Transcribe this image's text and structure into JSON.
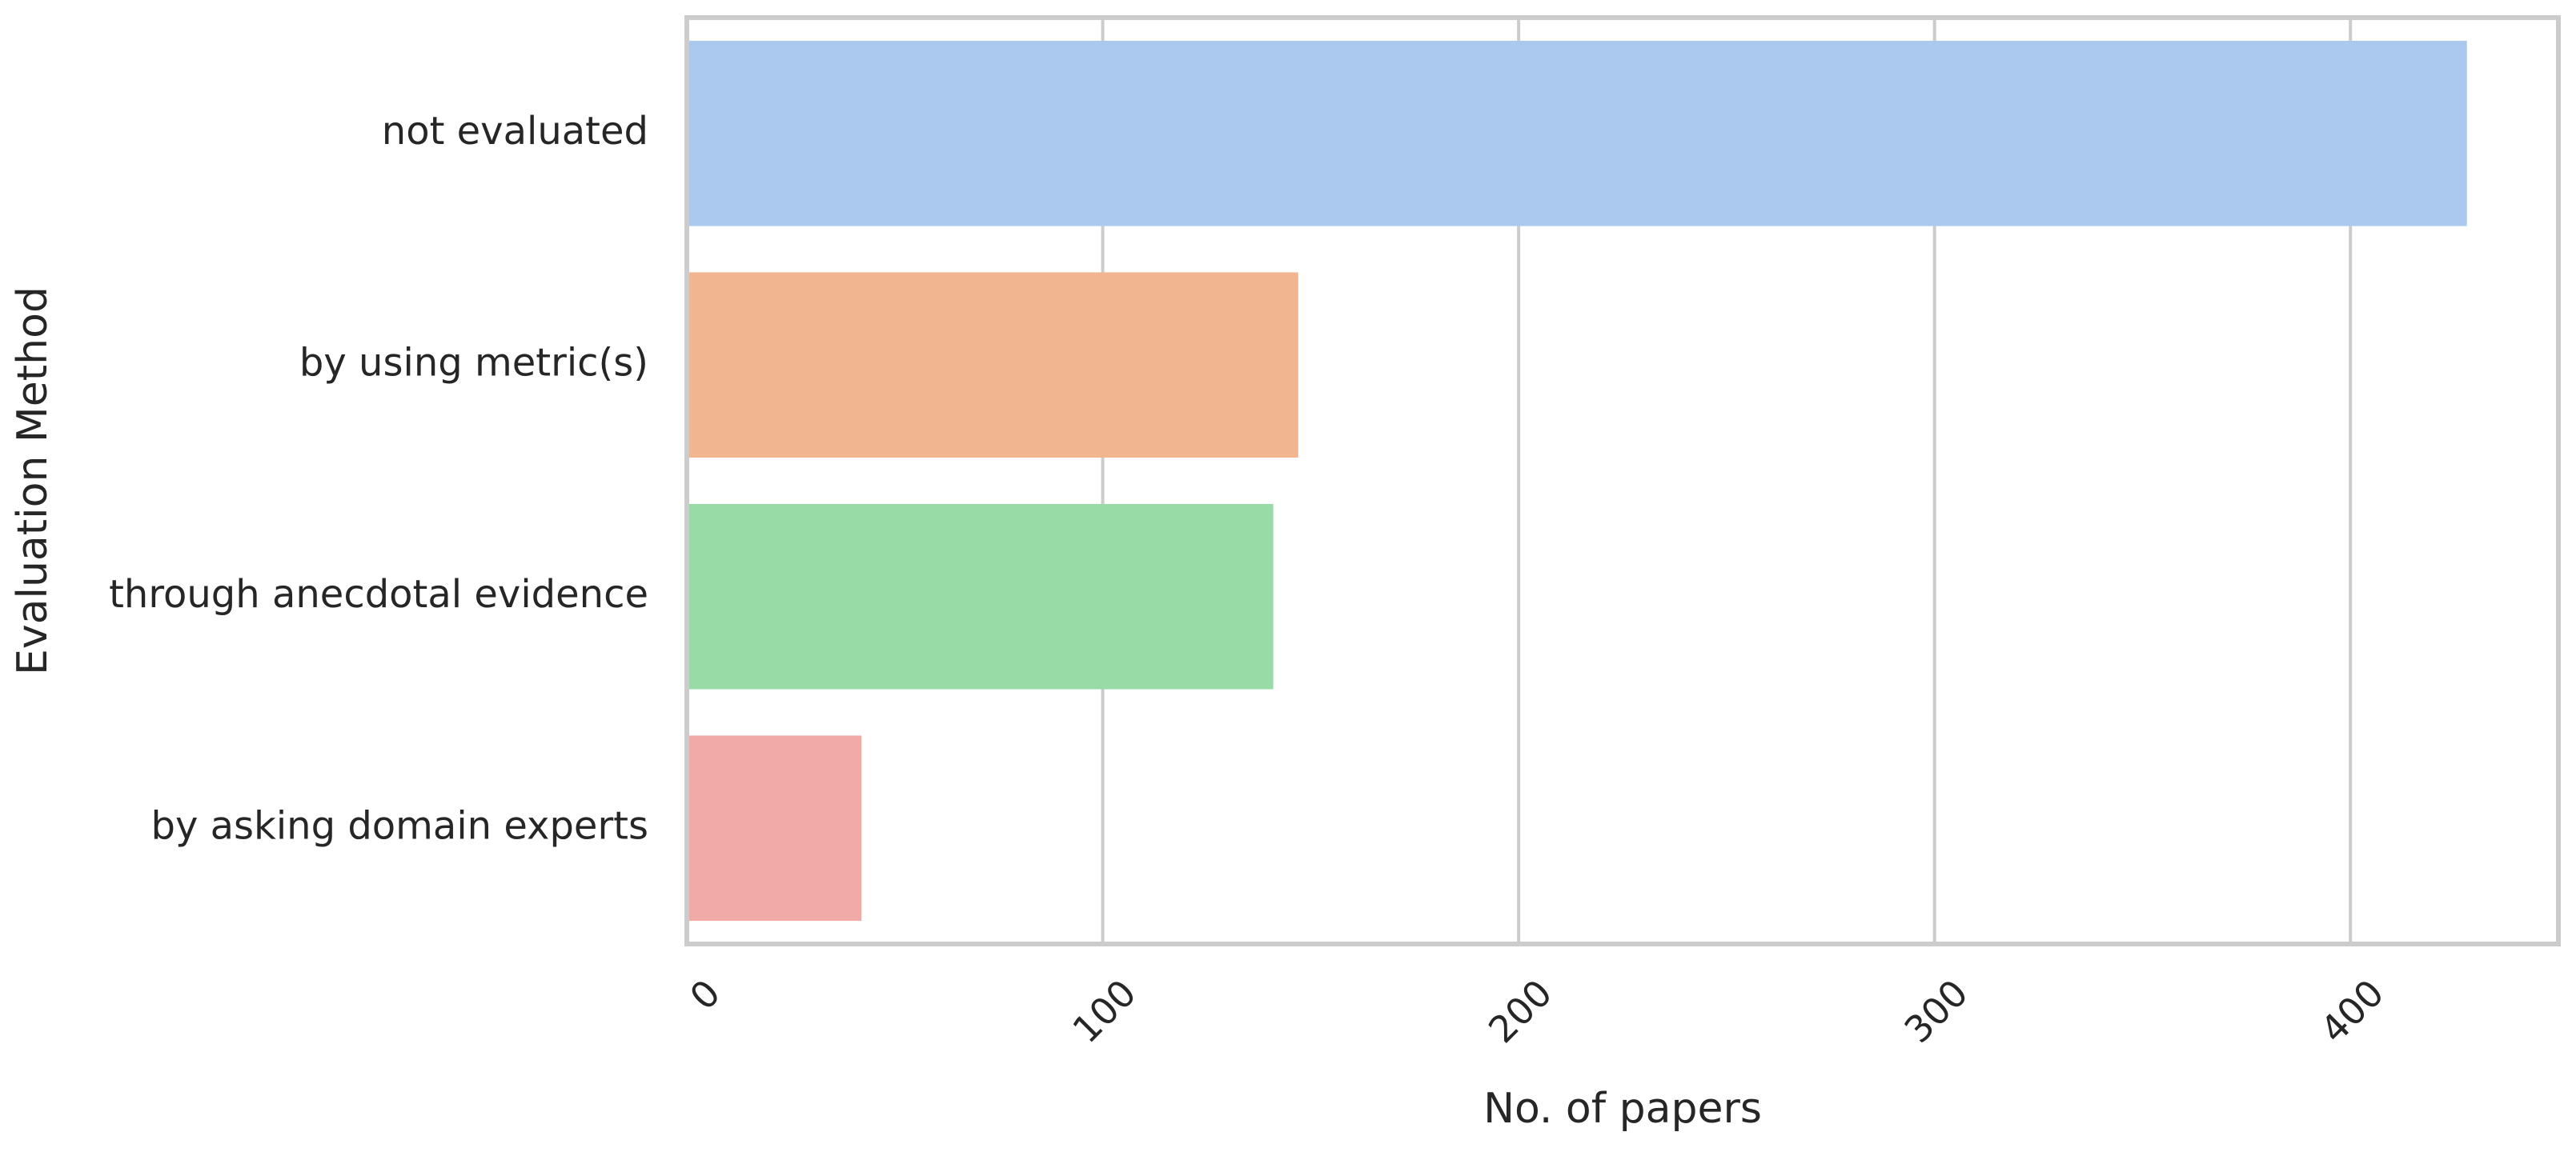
{
  "chart_data": {
    "type": "bar",
    "orientation": "horizontal",
    "title": "",
    "xlabel": "No. of papers",
    "ylabel": "Evaluation Method",
    "categories": [
      "not evaluated",
      "by using metric(s)",
      "through anecdotal evidence",
      "by asking domain experts"
    ],
    "values": [
      428,
      147,
      141,
      42
    ],
    "colors": [
      "#abc9ee",
      "#f1b690",
      "#98dba6",
      "#f2aaa8"
    ],
    "xlim": [
      0,
      450
    ],
    "xticks": [
      0,
      100,
      200,
      300,
      400
    ],
    "xtick_labels": [
      "0",
      "100",
      "200",
      "300",
      "400"
    ],
    "xtick_rotation": "45 degrees",
    "grid": "vertical, light gray",
    "legend": "none"
  }
}
